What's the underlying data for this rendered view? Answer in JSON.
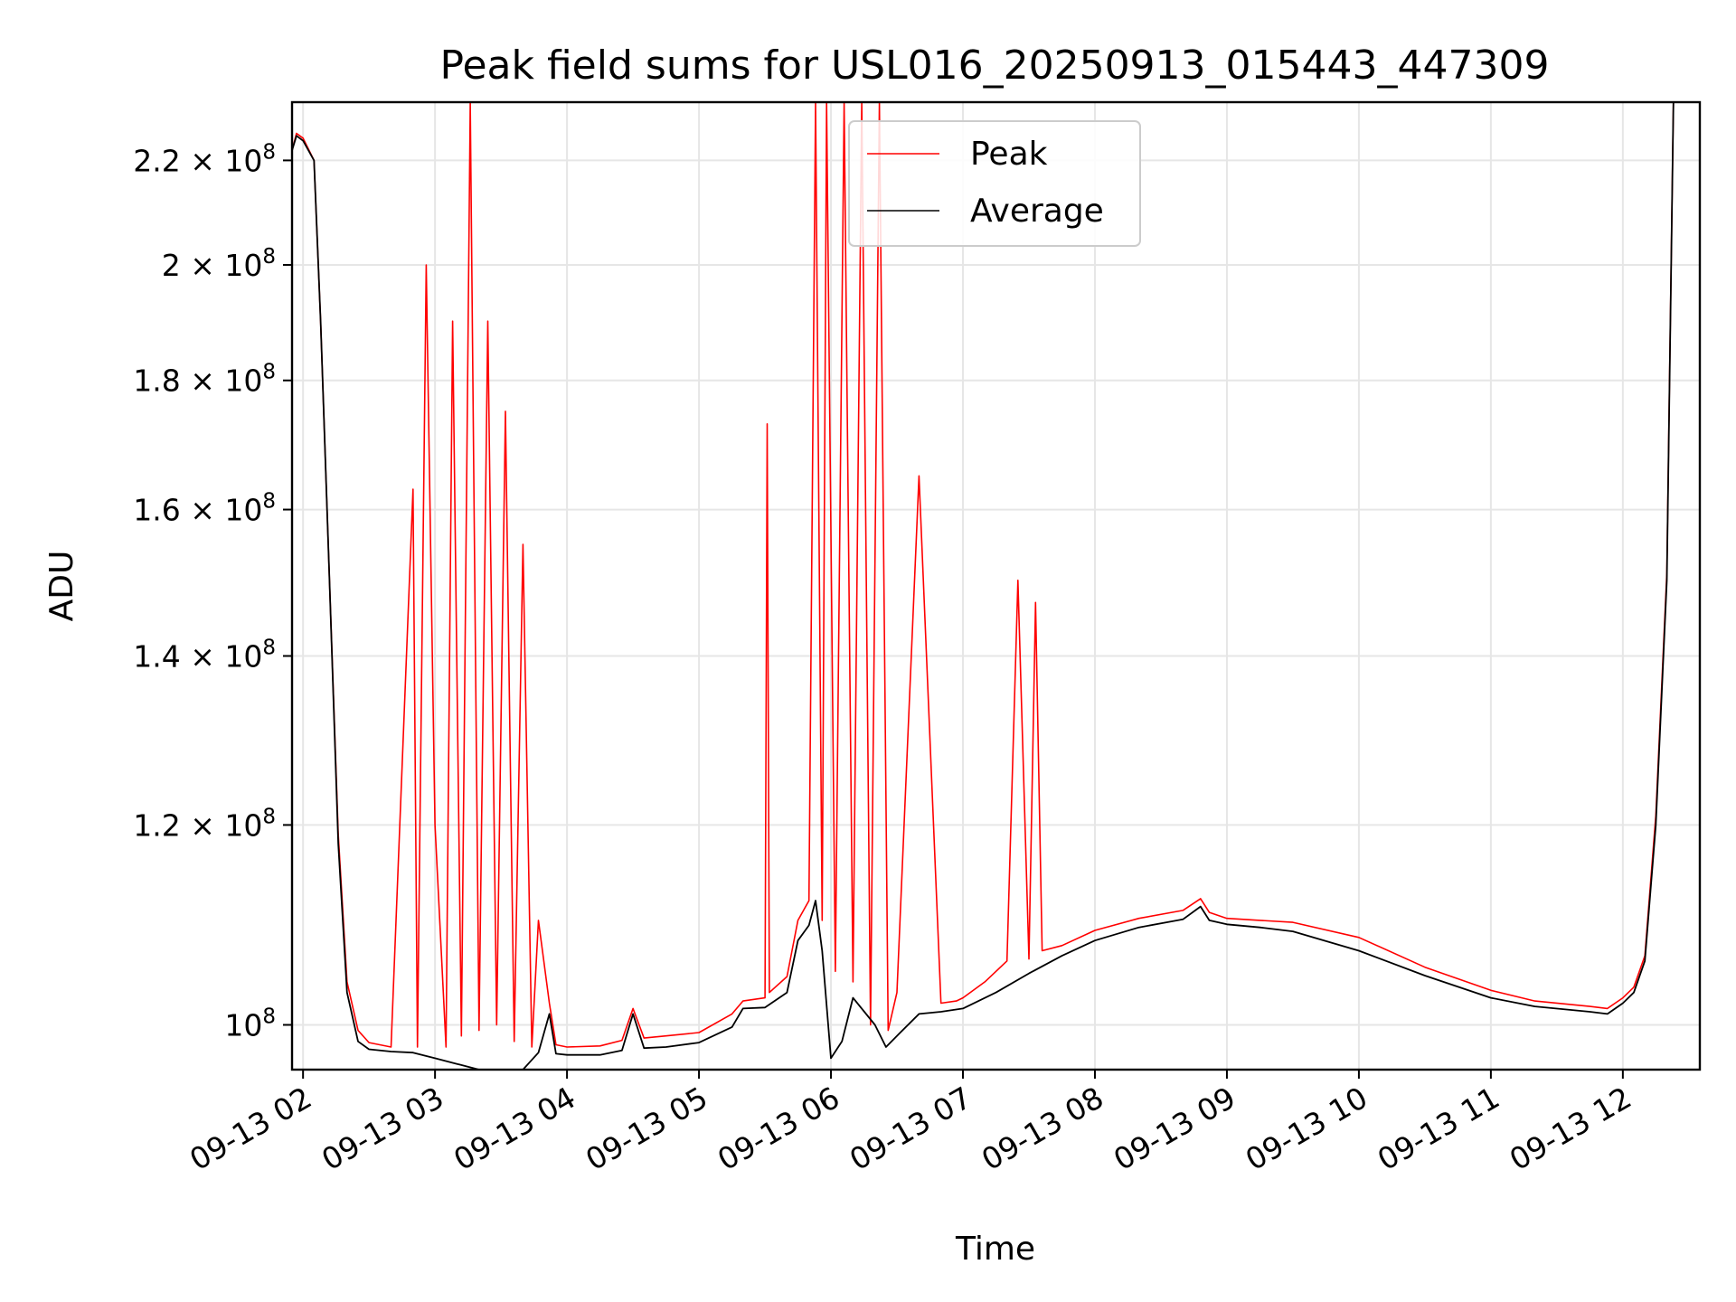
{
  "chart_data": {
    "type": "line",
    "title": "Peak field sums for USL016_20250913_015443_447309",
    "xlabel": "Time",
    "ylabel": "ADU",
    "x_scale": "time",
    "y_scale": "log",
    "xlim": [
      "2025-09-13T01:55",
      "2025-09-13T12:35"
    ],
    "ylim": [
      96000000,
      232000000
    ],
    "grid": true,
    "legend": "upper center",
    "x_ticks": [
      {
        "value": "2025-09-13T02:00",
        "label": "09-13 02"
      },
      {
        "value": "2025-09-13T03:00",
        "label": "09-13 03"
      },
      {
        "value": "2025-09-13T04:00",
        "label": "09-13 04"
      },
      {
        "value": "2025-09-13T05:00",
        "label": "09-13 05"
      },
      {
        "value": "2025-09-13T06:00",
        "label": "09-13 06"
      },
      {
        "value": "2025-09-13T07:00",
        "label": "09-13 07"
      },
      {
        "value": "2025-09-13T08:00",
        "label": "09-13 08"
      },
      {
        "value": "2025-09-13T09:00",
        "label": "09-13 09"
      },
      {
        "value": "2025-09-13T10:00",
        "label": "09-13 10"
      },
      {
        "value": "2025-09-13T11:00",
        "label": "09-13 11"
      },
      {
        "value": "2025-09-13T12:00",
        "label": "09-13 12"
      }
    ],
    "y_ticks": [
      {
        "value": 100000000,
        "base": "10",
        "exp": "8",
        "mant": ""
      },
      {
        "value": 120000000,
        "base": "10",
        "exp": "8",
        "mant": "1.2 × "
      },
      {
        "value": 140000000,
        "base": "10",
        "exp": "8",
        "mant": "1.4 × "
      },
      {
        "value": 160000000,
        "base": "10",
        "exp": "8",
        "mant": "1.6 × "
      },
      {
        "value": 180000000,
        "base": "10",
        "exp": "8",
        "mant": "1.8 × "
      },
      {
        "value": 200000000,
        "base": "10",
        "exp": "8",
        "mant": "2 × "
      },
      {
        "value": 220000000,
        "base": "10",
        "exp": "8",
        "mant": "2.2 × "
      }
    ],
    "series": [
      {
        "name": "Average",
        "color": "#000000",
        "x": [
          "2025-09-13T01:55",
          "2025-09-13T01:57",
          "2025-09-13T02:00",
          "2025-09-13T02:05",
          "2025-09-13T02:08",
          "2025-09-13T02:12",
          "2025-09-13T02:16",
          "2025-09-13T02:20",
          "2025-09-13T02:25",
          "2025-09-13T02:30",
          "2025-09-13T02:40",
          "2025-09-13T02:50",
          "2025-09-13T03:00",
          "2025-09-13T03:10",
          "2025-09-13T03:20",
          "2025-09-13T03:30",
          "2025-09-13T03:40",
          "2025-09-13T03:47",
          "2025-09-13T03:52",
          "2025-09-13T03:55",
          "2025-09-13T04:00",
          "2025-09-13T04:15",
          "2025-09-13T04:25",
          "2025-09-13T04:30",
          "2025-09-13T04:35",
          "2025-09-13T04:45",
          "2025-09-13T05:00",
          "2025-09-13T05:15",
          "2025-09-13T05:20",
          "2025-09-13T05:30",
          "2025-09-13T05:40",
          "2025-09-13T05:45",
          "2025-09-13T05:50",
          "2025-09-13T05:53",
          "2025-09-13T05:56",
          "2025-09-13T06:00",
          "2025-09-13T06:05",
          "2025-09-13T06:10",
          "2025-09-13T06:20",
          "2025-09-13T06:25",
          "2025-09-13T06:30",
          "2025-09-13T06:40",
          "2025-09-13T06:50",
          "2025-09-13T07:00",
          "2025-09-13T07:15",
          "2025-09-13T07:30",
          "2025-09-13T07:45",
          "2025-09-13T08:00",
          "2025-09-13T08:20",
          "2025-09-13T08:40",
          "2025-09-13T08:48",
          "2025-09-13T08:52",
          "2025-09-13T09:00",
          "2025-09-13T09:15",
          "2025-09-13T09:30",
          "2025-09-13T10:00",
          "2025-09-13T10:30",
          "2025-09-13T11:00",
          "2025-09-13T11:20",
          "2025-09-13T11:45",
          "2025-09-13T11:53",
          "2025-09-13T12:00",
          "2025-09-13T12:05",
          "2025-09-13T12:10",
          "2025-09-13T12:15",
          "2025-09-13T12:20",
          "2025-09-13T12:23"
        ],
        "y": [
          222000000,
          225000000,
          224000000,
          220000000,
          190000000,
          150000000,
          118000000,
          103000000,
          98500000,
          97800000,
          97600000,
          97500000,
          97000000,
          96500000,
          96000000,
          95800000,
          96000000,
          97500000,
          101000000,
          97400000,
          97300000,
          97300000,
          97700000,
          101000000,
          97900000,
          98000000,
          98400000,
          99800000,
          101500000,
          101600000,
          103000000,
          108000000,
          109500000,
          112000000,
          107000000,
          97000000,
          98500000,
          102500000,
          100000000,
          98000000,
          99000000,
          101000000,
          101200000,
          101500000,
          103000000,
          104800000,
          106500000,
          108000000,
          109300000,
          110100000,
          111400000,
          110000000,
          109600000,
          109300000,
          108900000,
          107000000,
          104600000,
          102500000,
          101700000,
          101200000,
          101000000,
          102000000,
          103000000,
          106000000,
          120000000,
          150000000,
          232000000
        ]
      },
      {
        "name": "Peak",
        "color": "#ff0000",
        "x": [
          "2025-09-13T01:55",
          "2025-09-13T01:57",
          "2025-09-13T02:00",
          "2025-09-13T02:05",
          "2025-09-13T02:08",
          "2025-09-13T02:12",
          "2025-09-13T02:16",
          "2025-09-13T02:20",
          "2025-09-13T02:25",
          "2025-09-13T02:30",
          "2025-09-13T02:40",
          "2025-09-13T02:50",
          "2025-09-13T02:52",
          "2025-09-13T02:56",
          "2025-09-13T03:00",
          "2025-09-13T03:05",
          "2025-09-13T03:08",
          "2025-09-13T03:12",
          "2025-09-13T03:16",
          "2025-09-13T03:20",
          "2025-09-13T03:24",
          "2025-09-13T03:28",
          "2025-09-13T03:32",
          "2025-09-13T03:36",
          "2025-09-13T03:40",
          "2025-09-13T03:44",
          "2025-09-13T03:47",
          "2025-09-13T03:52",
          "2025-09-13T03:55",
          "2025-09-13T04:00",
          "2025-09-13T04:15",
          "2025-09-13T04:25",
          "2025-09-13T04:30",
          "2025-09-13T04:35",
          "2025-09-13T04:45",
          "2025-09-13T05:00",
          "2025-09-13T05:15",
          "2025-09-13T05:20",
          "2025-09-13T05:30",
          "2025-09-13T05:31",
          "2025-09-13T05:32",
          "2025-09-13T05:40",
          "2025-09-13T05:45",
          "2025-09-13T05:50",
          "2025-09-13T05:53",
          "2025-09-13T05:56",
          "2025-09-13T05:58",
          "2025-09-13T06:02",
          "2025-09-13T06:06",
          "2025-09-13T06:10",
          "2025-09-13T06:14",
          "2025-09-13T06:18",
          "2025-09-13T06:22",
          "2025-09-13T06:26",
          "2025-09-13T06:30",
          "2025-09-13T06:40",
          "2025-09-13T06:50",
          "2025-09-13T06:57",
          "2025-09-13T07:00",
          "2025-09-13T07:10",
          "2025-09-13T07:20",
          "2025-09-13T07:25",
          "2025-09-13T07:30",
          "2025-09-13T07:33",
          "2025-09-13T07:36",
          "2025-09-13T07:45",
          "2025-09-13T08:00",
          "2025-09-13T08:20",
          "2025-09-13T08:40",
          "2025-09-13T08:48",
          "2025-09-13T08:52",
          "2025-09-13T09:00",
          "2025-09-13T09:15",
          "2025-09-13T09:30",
          "2025-09-13T10:00",
          "2025-09-13T10:30",
          "2025-09-13T11:00",
          "2025-09-13T11:20",
          "2025-09-13T11:45",
          "2025-09-13T11:53",
          "2025-09-13T12:00",
          "2025-09-13T12:05",
          "2025-09-13T12:10",
          "2025-09-13T12:15",
          "2025-09-13T12:20",
          "2025-09-13T12:23"
        ],
        "y": [
          222000000,
          225500000,
          224500000,
          220000000,
          190000000,
          150000000,
          119000000,
          104000000,
          99500000,
          98400000,
          98000000,
          163000000,
          98000000,
          200000000,
          120000000,
          98000000,
          190000000,
          99000000,
          232000000,
          99500000,
          190000000,
          100000000,
          175000000,
          98500000,
          155000000,
          98000000,
          110000000,
          102000000,
          98200000,
          98000000,
          98100000,
          98600000,
          101500000,
          98800000,
          99000000,
          99300000,
          101000000,
          102200000,
          102500000,
          173000000,
          103000000,
          104500000,
          110000000,
          112000000,
          232000000,
          110000000,
          232000000,
          105000000,
          232000000,
          104000000,
          232000000,
          100000000,
          232000000,
          99500000,
          103000000,
          165000000,
          102000000,
          102200000,
          102500000,
          104000000,
          106000000,
          150000000,
          106200000,
          147000000,
          107000000,
          107500000,
          109000000,
          110200000,
          111000000,
          112200000,
          110800000,
          110200000,
          110000000,
          109800000,
          108300000,
          105400000,
          103200000,
          102200000,
          101700000,
          101500000,
          102500000,
          103500000,
          106500000,
          121000000,
          151000000,
          232000000
        ]
      }
    ]
  }
}
